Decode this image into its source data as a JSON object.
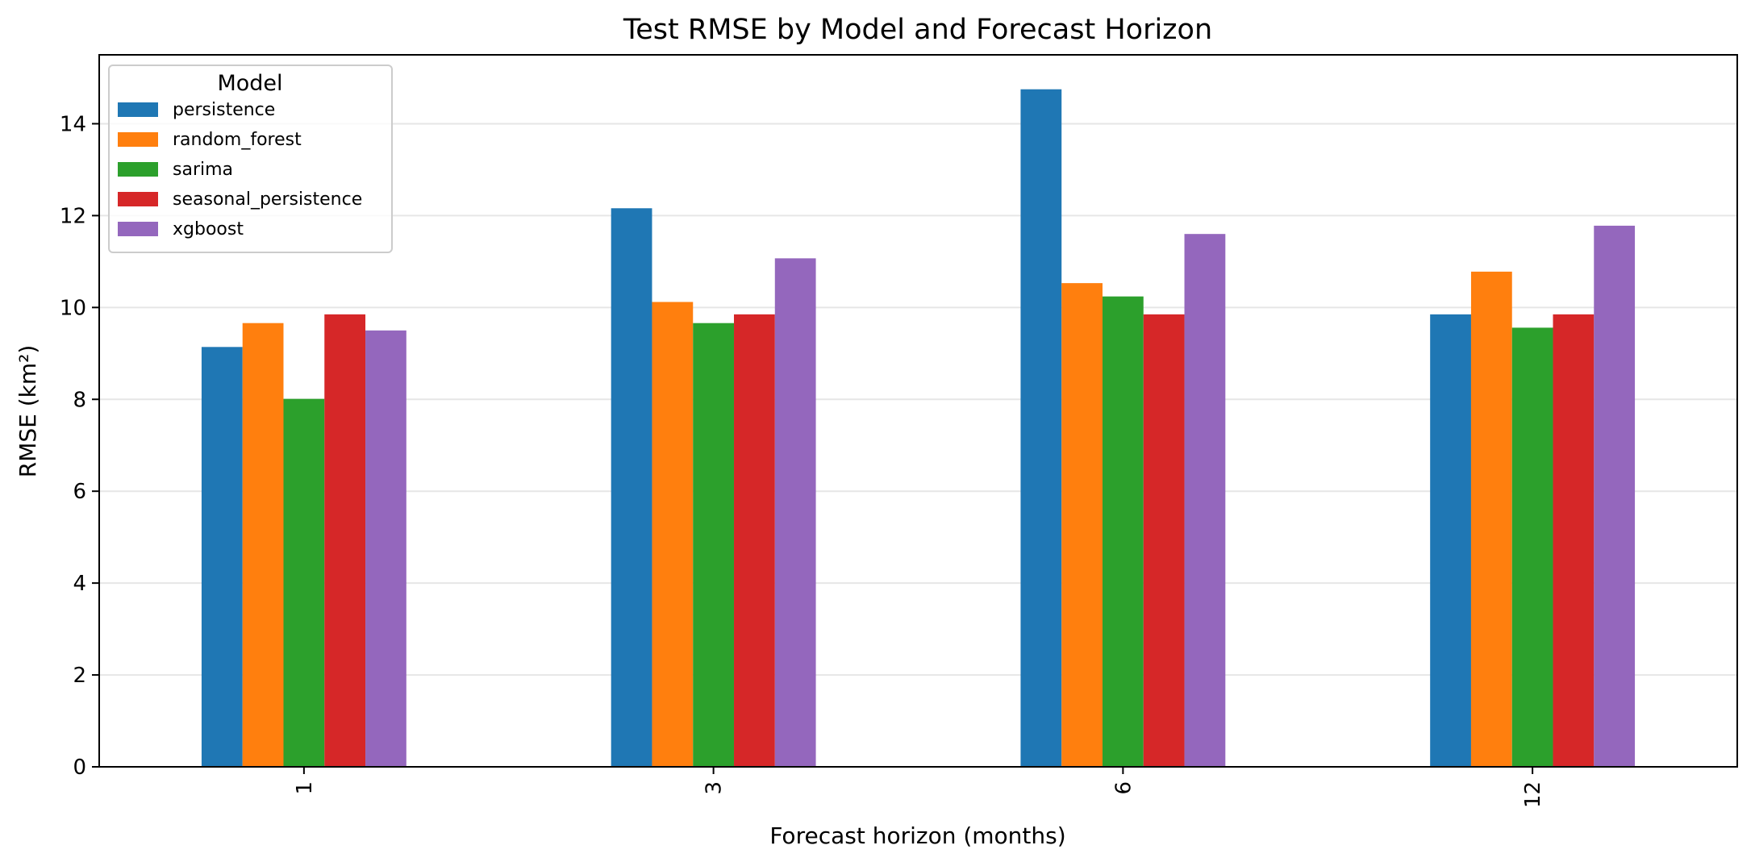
{
  "chart_data": {
    "type": "bar",
    "title": "Test RMSE by Model and Forecast Horizon",
    "xlabel": "Forecast horizon (months)",
    "ylabel": "RMSE (km²)",
    "categories": [
      "1",
      "3",
      "6",
      "12"
    ],
    "ylim": [
      0,
      15.5
    ],
    "yticks": [
      0,
      2,
      4,
      6,
      8,
      10,
      12,
      14
    ],
    "grid": "y-only, light",
    "legend": {
      "title": "Model",
      "placement": "top-left"
    },
    "series": [
      {
        "name": "persistence",
        "color": "#1f77b4",
        "values": [
          9.14,
          12.16,
          14.75,
          9.85
        ]
      },
      {
        "name": "random_forest",
        "color": "#ff7f0e",
        "values": [
          9.66,
          10.12,
          10.53,
          10.78
        ]
      },
      {
        "name": "sarima",
        "color": "#2ca02c",
        "values": [
          8.01,
          9.66,
          10.24,
          9.56
        ]
      },
      {
        "name": "seasonal_persistence",
        "color": "#d62728",
        "values": [
          9.85,
          9.85,
          9.85,
          9.85
        ]
      },
      {
        "name": "xgboost",
        "color": "#9467bd",
        "values": [
          9.5,
          11.07,
          11.6,
          11.78
        ]
      }
    ]
  }
}
